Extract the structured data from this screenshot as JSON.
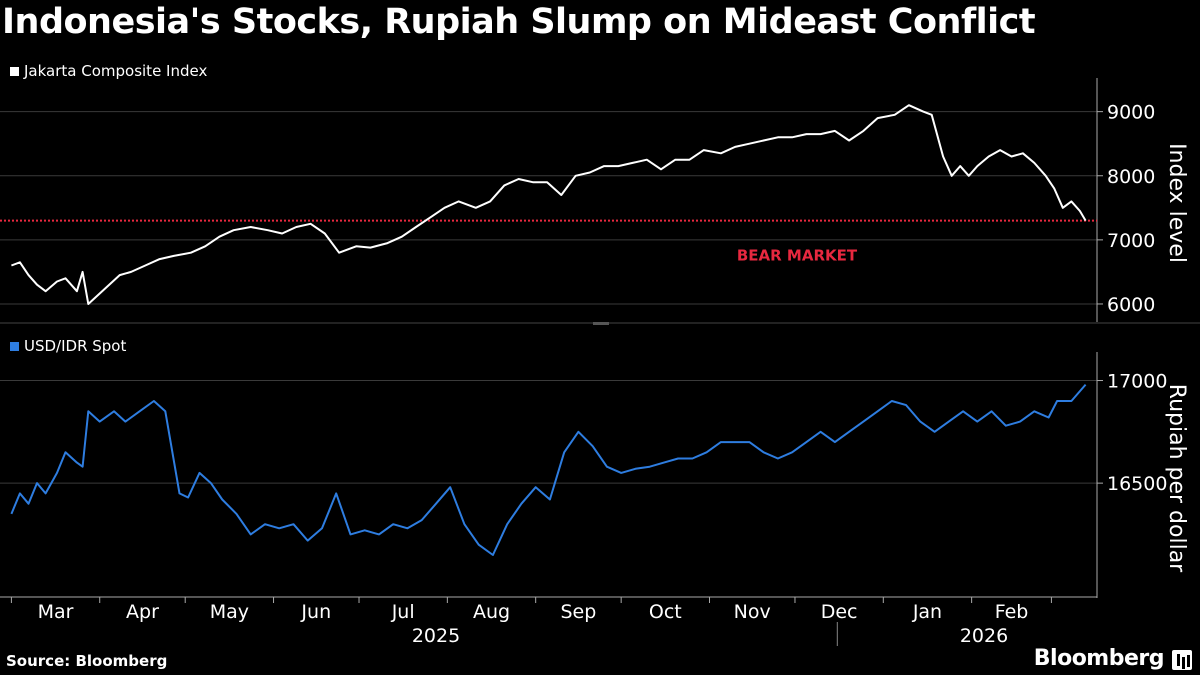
{
  "title": "Indonesia's Stocks, Rupiah Slump on Mideast Conflict",
  "source": "Source: Bloomberg",
  "brand": "Bloomberg",
  "colors": {
    "background": "#000000",
    "jci_line": "#ffffff",
    "idr_line": "#2e7de0",
    "bear_line": "#e8283f",
    "gridline": "#3a3a3a",
    "axis_text": "#ffffff"
  },
  "chart_data": [
    {
      "type": "line",
      "legend": "Jakarta Composite Index",
      "ylabel": "Index level",
      "ylim": [
        5750,
        9400
      ],
      "yticks": [
        6000,
        7000,
        8000,
        9000
      ],
      "grid": true,
      "annotation": {
        "text": "BEAR MARKET",
        "y": 7300
      },
      "series": [
        {
          "name": "Jakarta Composite Index",
          "x": [
            "2025-03-01",
            "2025-03-04",
            "2025-03-07",
            "2025-03-10",
            "2025-03-13",
            "2025-03-17",
            "2025-03-20",
            "2025-03-24",
            "2025-03-26",
            "2025-03-28",
            "2025-04-08",
            "2025-04-12",
            "2025-04-17",
            "2025-04-22",
            "2025-04-27",
            "2025-05-03",
            "2025-05-08",
            "2025-05-13",
            "2025-05-18",
            "2025-05-24",
            "2025-05-30",
            "2025-06-04",
            "2025-06-09",
            "2025-06-14",
            "2025-06-19",
            "2025-06-24",
            "2025-06-30",
            "2025-07-05",
            "2025-07-11",
            "2025-07-16",
            "2025-07-21",
            "2025-07-26",
            "2025-07-31",
            "2025-08-05",
            "2025-08-11",
            "2025-08-16",
            "2025-08-21",
            "2025-08-26",
            "2025-08-31",
            "2025-09-05",
            "2025-09-10",
            "2025-09-15",
            "2025-09-20",
            "2025-09-25",
            "2025-09-30",
            "2025-10-05",
            "2025-10-10",
            "2025-10-15",
            "2025-10-20",
            "2025-10-25",
            "2025-10-30",
            "2025-11-05",
            "2025-11-10",
            "2025-11-15",
            "2025-11-20",
            "2025-11-25",
            "2025-11-30",
            "2025-12-05",
            "2025-12-10",
            "2025-12-15",
            "2025-12-20",
            "2025-12-25",
            "2025-12-30",
            "2026-01-05",
            "2026-01-10",
            "2026-01-15",
            "2026-01-18",
            "2026-01-22",
            "2026-01-25",
            "2026-01-28",
            "2026-01-31",
            "2026-02-03",
            "2026-02-07",
            "2026-02-11",
            "2026-02-15",
            "2026-02-19",
            "2026-02-23",
            "2026-02-27",
            "2026-03-02",
            "2026-03-05",
            "2026-03-08",
            "2026-03-11",
            "2026-03-13"
          ],
          "y": [
            6600,
            6650,
            6450,
            6300,
            6200,
            6350,
            6400,
            6200,
            6500,
            6000,
            6450,
            6500,
            6600,
            6700,
            6750,
            6800,
            6900,
            7050,
            7150,
            7200,
            7150,
            7100,
            7200,
            7250,
            7100,
            6800,
            6900,
            6880,
            6950,
            7050,
            7200,
            7350,
            7500,
            7600,
            7500,
            7600,
            7850,
            7950,
            7900,
            7900,
            7700,
            8000,
            8050,
            8150,
            8150,
            8200,
            8250,
            8100,
            8250,
            8250,
            8400,
            8350,
            8450,
            8500,
            8550,
            8600,
            8600,
            8650,
            8650,
            8700,
            8550,
            8700,
            8900,
            8950,
            9100,
            9000,
            8950,
            8300,
            8000,
            8150,
            8000,
            8150,
            8300,
            8400,
            8300,
            8350,
            8200,
            8000,
            7800,
            7500,
            7600,
            7450,
            7300
          ]
        }
      ]
    },
    {
      "type": "line",
      "legend": "USD/IDR Spot",
      "ylabel": "Rupiah per dollar",
      "ylim": [
        15950,
        17100
      ],
      "yticks": [
        16500,
        17000
      ],
      "grid": true,
      "series": [
        {
          "name": "USD/IDR Spot",
          "x": [
            "2025-03-01",
            "2025-03-04",
            "2025-03-07",
            "2025-03-10",
            "2025-03-13",
            "2025-03-17",
            "2025-03-20",
            "2025-03-24",
            "2025-03-26",
            "2025-03-28",
            "2025-04-01",
            "2025-04-06",
            "2025-04-10",
            "2025-04-15",
            "2025-04-20",
            "2025-04-24",
            "2025-04-29",
            "2025-05-02",
            "2025-05-06",
            "2025-05-10",
            "2025-05-14",
            "2025-05-19",
            "2025-05-24",
            "2025-05-29",
            "2025-06-03",
            "2025-06-08",
            "2025-06-13",
            "2025-06-18",
            "2025-06-23",
            "2025-06-28",
            "2025-07-03",
            "2025-07-08",
            "2025-07-13",
            "2025-07-18",
            "2025-07-23",
            "2025-07-28",
            "2025-08-02",
            "2025-08-07",
            "2025-08-12",
            "2025-08-17",
            "2025-08-22",
            "2025-08-27",
            "2025-09-01",
            "2025-09-06",
            "2025-09-11",
            "2025-09-16",
            "2025-09-21",
            "2025-09-26",
            "2025-10-01",
            "2025-10-06",
            "2025-10-11",
            "2025-10-16",
            "2025-10-21",
            "2025-10-26",
            "2025-10-31",
            "2025-11-05",
            "2025-11-10",
            "2025-11-15",
            "2025-11-20",
            "2025-11-25",
            "2025-11-30",
            "2025-12-05",
            "2025-12-10",
            "2025-12-15",
            "2025-12-20",
            "2025-12-25",
            "2025-12-30",
            "2026-01-04",
            "2026-01-09",
            "2026-01-14",
            "2026-01-19",
            "2026-01-24",
            "2026-01-29",
            "2026-02-03",
            "2026-02-08",
            "2026-02-13",
            "2026-02-18",
            "2026-02-23",
            "2026-02-28",
            "2026-03-03",
            "2026-03-08",
            "2026-03-13"
          ],
          "y": [
            16350,
            16450,
            16400,
            16500,
            16450,
            16550,
            16650,
            16600,
            16580,
            16850,
            16800,
            16850,
            16800,
            16850,
            16900,
            16850,
            16450,
            16430,
            16550,
            16500,
            16420,
            16350,
            16250,
            16300,
            16280,
            16300,
            16220,
            16280,
            16450,
            16250,
            16270,
            16250,
            16300,
            16280,
            16320,
            16400,
            16480,
            16300,
            16200,
            16150,
            16300,
            16400,
            16480,
            16420,
            16650,
            16750,
            16680,
            16580,
            16550,
            16570,
            16580,
            16600,
            16620,
            16620,
            16650,
            16700,
            16700,
            16700,
            16650,
            16620,
            16650,
            16700,
            16750,
            16700,
            16750,
            16800,
            16850,
            16900,
            16880,
            16800,
            16750,
            16800,
            16850,
            16800,
            16850,
            16780,
            16800,
            16850,
            16820,
            16900,
            16900,
            16980
          ]
        }
      ]
    }
  ],
  "x_axis": {
    "months": [
      "Mar",
      "Apr",
      "May",
      "Jun",
      "Jul",
      "Aug",
      "Sep",
      "Oct",
      "Nov",
      "Dec",
      "Jan",
      "Feb"
    ],
    "years": [
      "2025",
      "2026"
    ]
  }
}
